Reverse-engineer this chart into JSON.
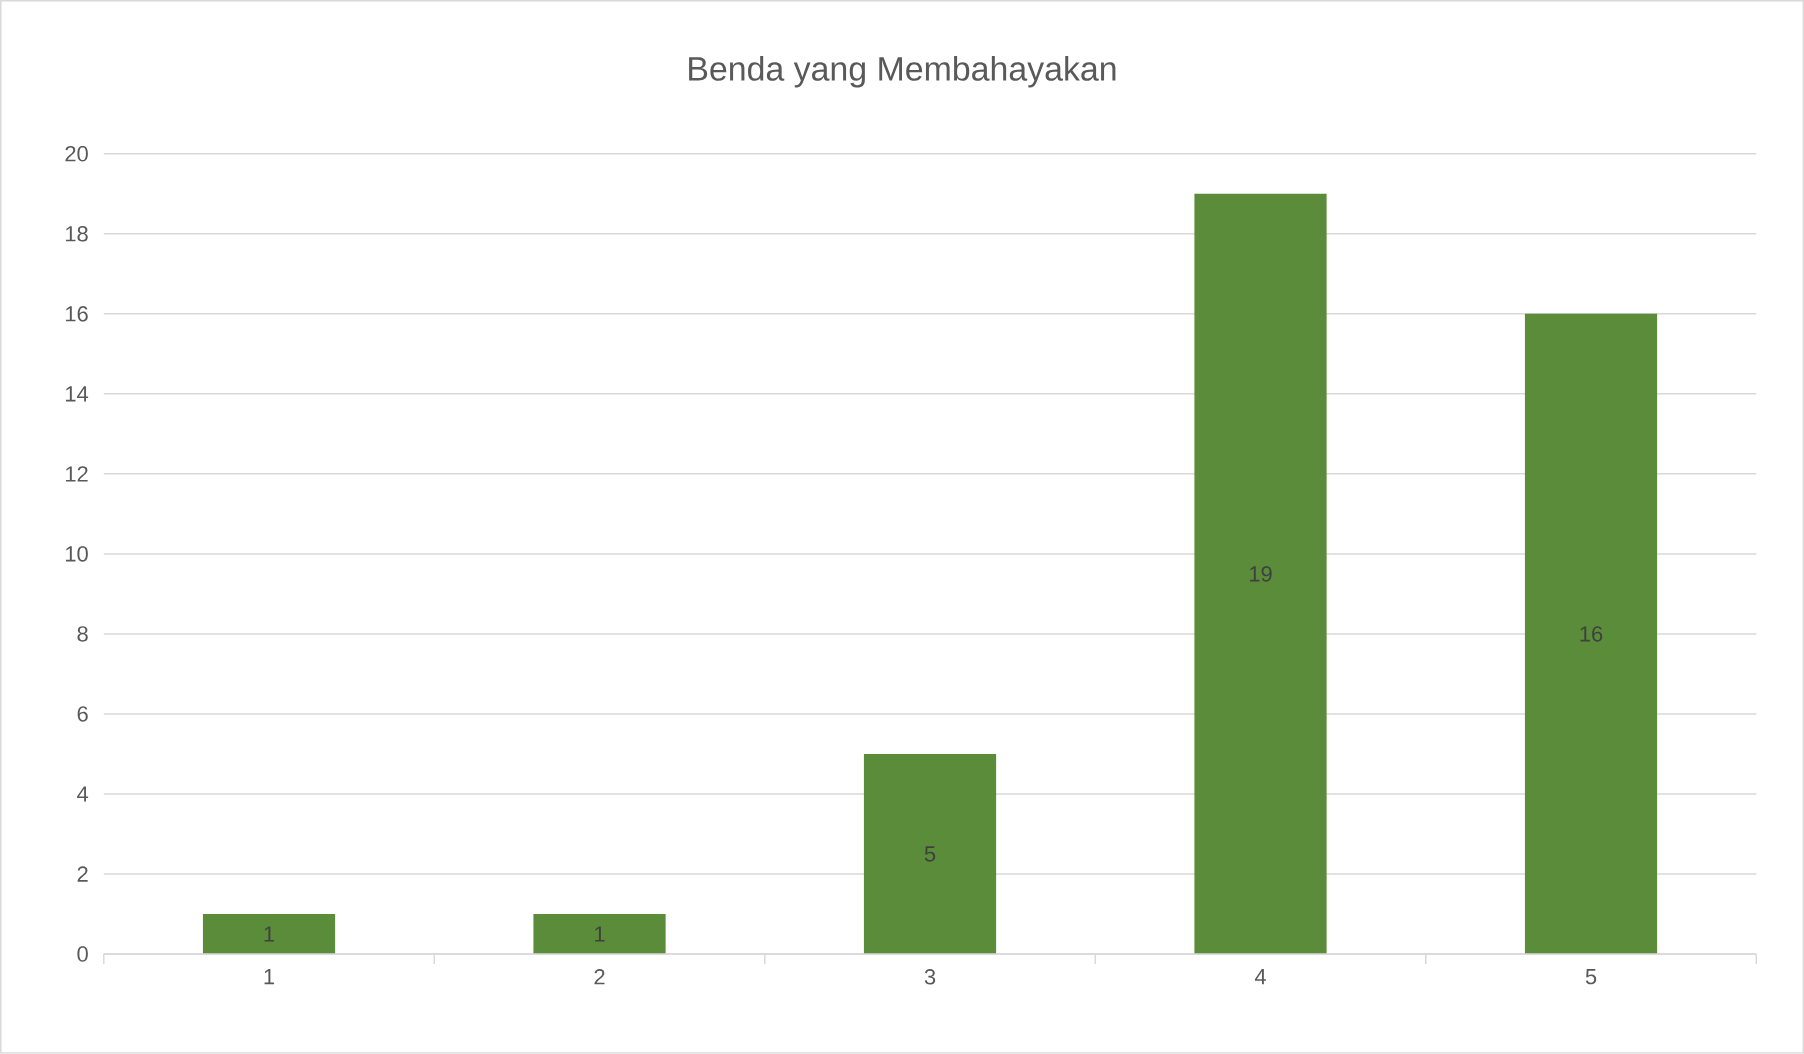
{
  "chart_data": {
    "type": "bar",
    "title": "Benda yang Membahayakan",
    "categories": [
      "1",
      "2",
      "3",
      "4",
      "5"
    ],
    "values": [
      1,
      1,
      5,
      19,
      16
    ],
    "color": "#5b8c3a",
    "ylim": [
      0,
      20
    ],
    "yticks": [
      0,
      2,
      4,
      6,
      8,
      10,
      12,
      14,
      16,
      18,
      20
    ],
    "grid": "y",
    "data_labels": true
  }
}
